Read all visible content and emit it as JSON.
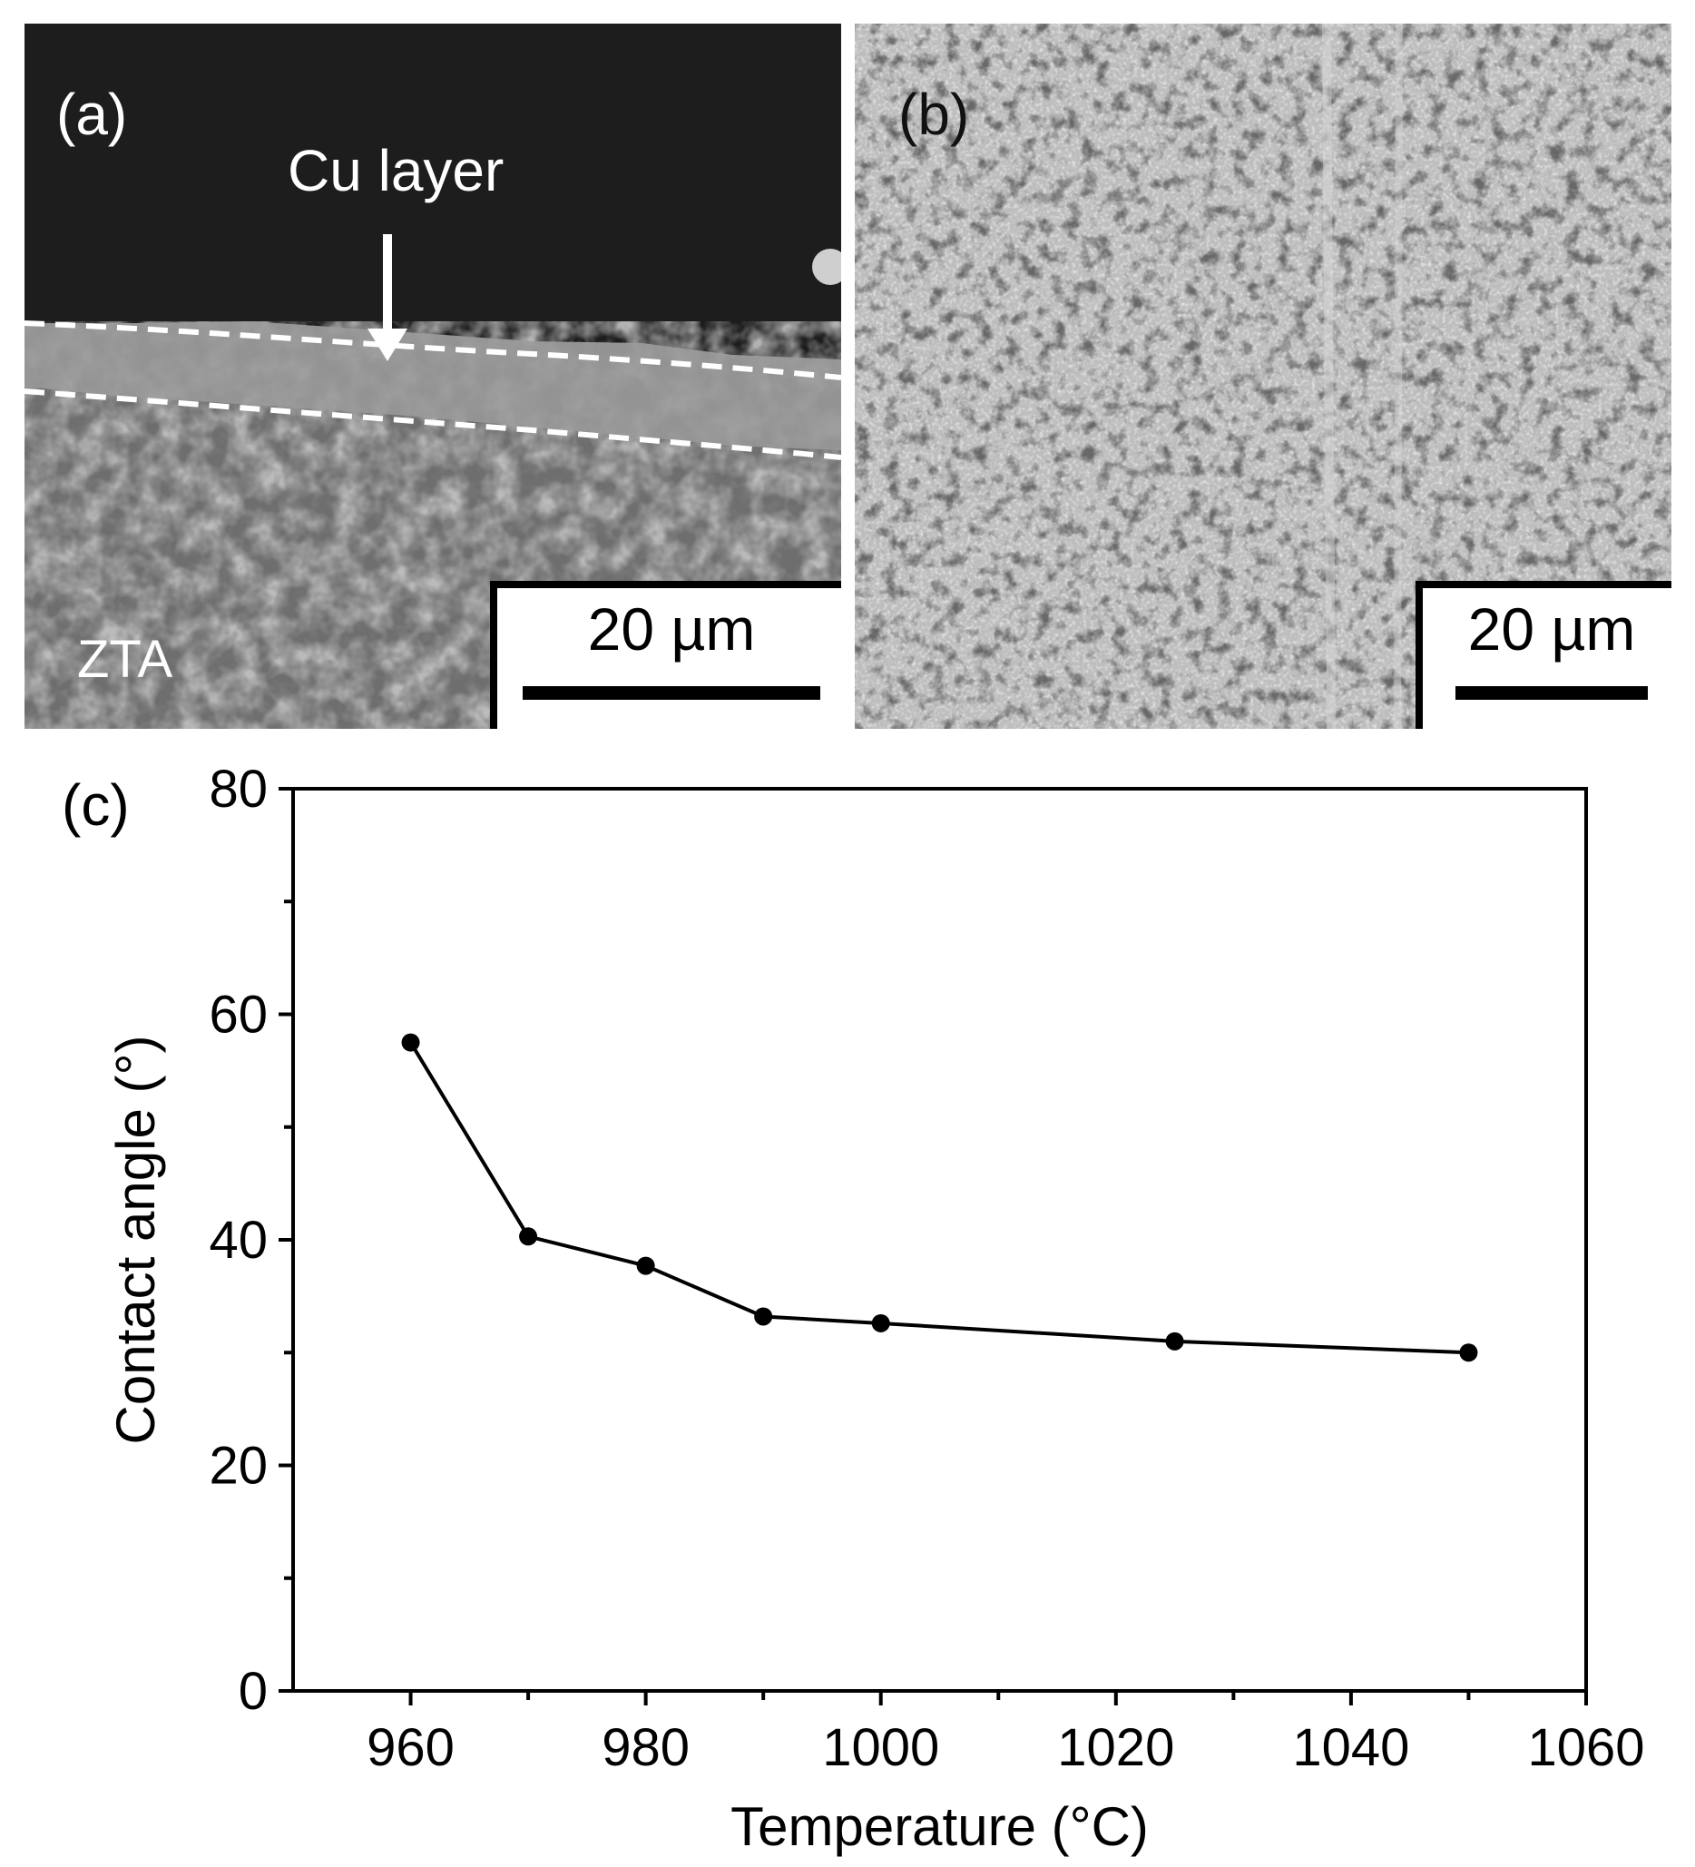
{
  "panel_a": {
    "label": "(a)",
    "annotation_cu": "Cu layer",
    "annotation_substrate": "ZTA",
    "scale_bar": "20 µm"
  },
  "panel_b": {
    "label": "(b)",
    "scale_bar": "20 µm"
  },
  "panel_c": {
    "label": "(c)"
  },
  "chart_data": {
    "type": "line",
    "xlabel": "Temperature (°C)",
    "ylabel": "Contact angle (°)",
    "xlim": [
      950,
      1060
    ],
    "ylim": [
      0,
      80
    ],
    "xticks": [
      960,
      980,
      1000,
      1020,
      1040,
      1060
    ],
    "yticks": [
      0,
      20,
      40,
      60,
      80
    ],
    "grid": false,
    "series": [
      {
        "x": [
          960,
          970,
          980,
          990,
          1000,
          1025,
          1050
        ],
        "y": [
          57.5,
          40.3,
          37.7,
          33.2,
          32.6,
          31.0,
          30.0
        ],
        "color": "#000000",
        "marker": "circle"
      }
    ]
  }
}
